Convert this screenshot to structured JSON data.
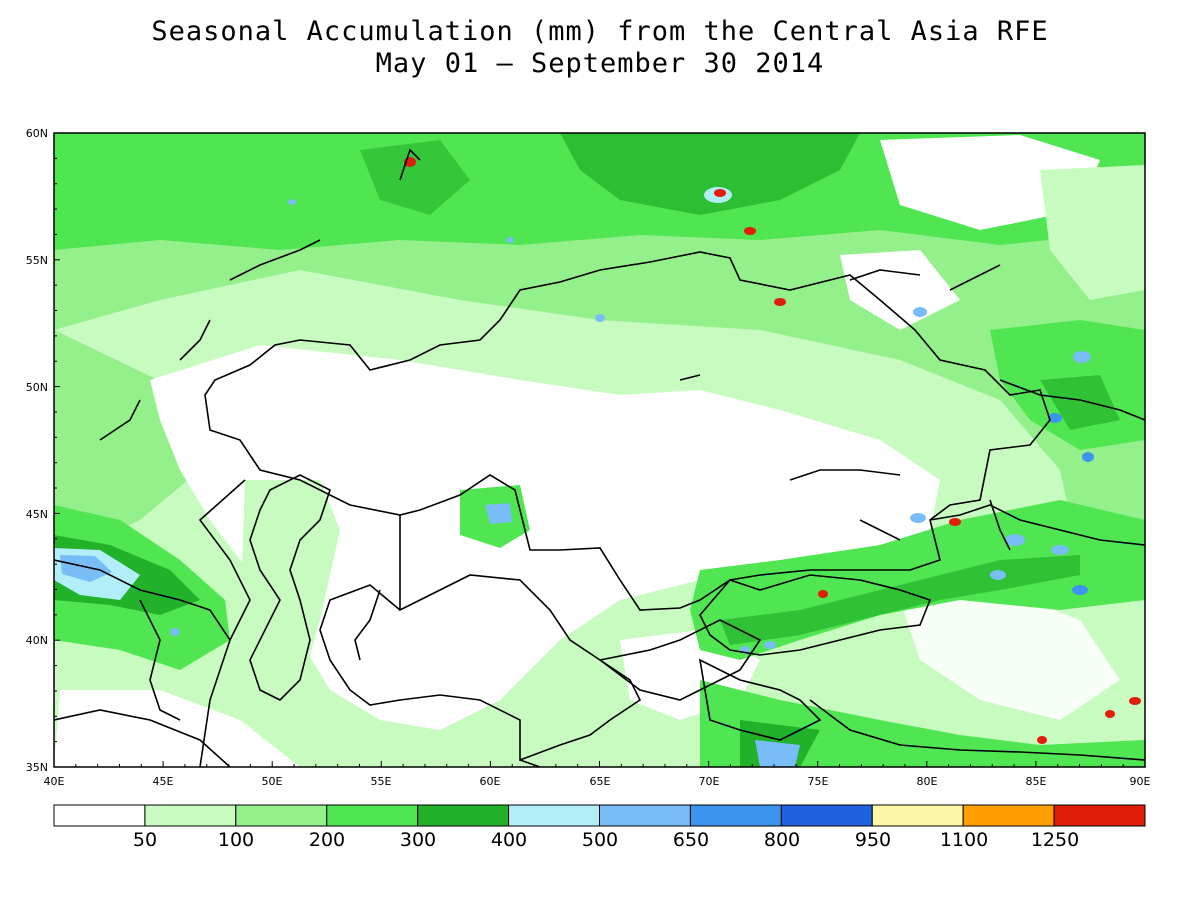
{
  "title": {
    "line1": "Seasonal Accumulation (mm) from the Central Asia RFE",
    "line2": "May 01 – September 30 2014"
  },
  "axes": {
    "lat_labels": [
      "60N",
      "55N",
      "50N",
      "45N",
      "40N",
      "35N"
    ],
    "lon_labels": [
      "40E",
      "45E",
      "50E",
      "55E",
      "60E",
      "65E",
      "70E",
      "75E",
      "80E",
      "85E",
      "90E"
    ]
  },
  "colorbar": {
    "colors": [
      "#ffffff",
      "#c8fbc0",
      "#94f08a",
      "#50e652",
      "#22b22a",
      "#b2eef8",
      "#78bcf8",
      "#3c94ee",
      "#1e62e0",
      "#fff7a8",
      "#ff9e00",
      "#e01e0a"
    ],
    "labels": [
      "50",
      "100",
      "200",
      "300",
      "400",
      "500",
      "650",
      "800",
      "950",
      "1100",
      "1250"
    ]
  },
  "palette": {
    "white": "#ffffff",
    "light_green": "#c8fbc0",
    "green": "#94f08a",
    "mid_green": "#50e652",
    "dark_green": "#22b22a",
    "light_blue": "#b2eef8",
    "blue": "#78bcf8",
    "deep_blue": "#3c94ee",
    "red": "#e01e0a",
    "border": "#000000"
  }
}
